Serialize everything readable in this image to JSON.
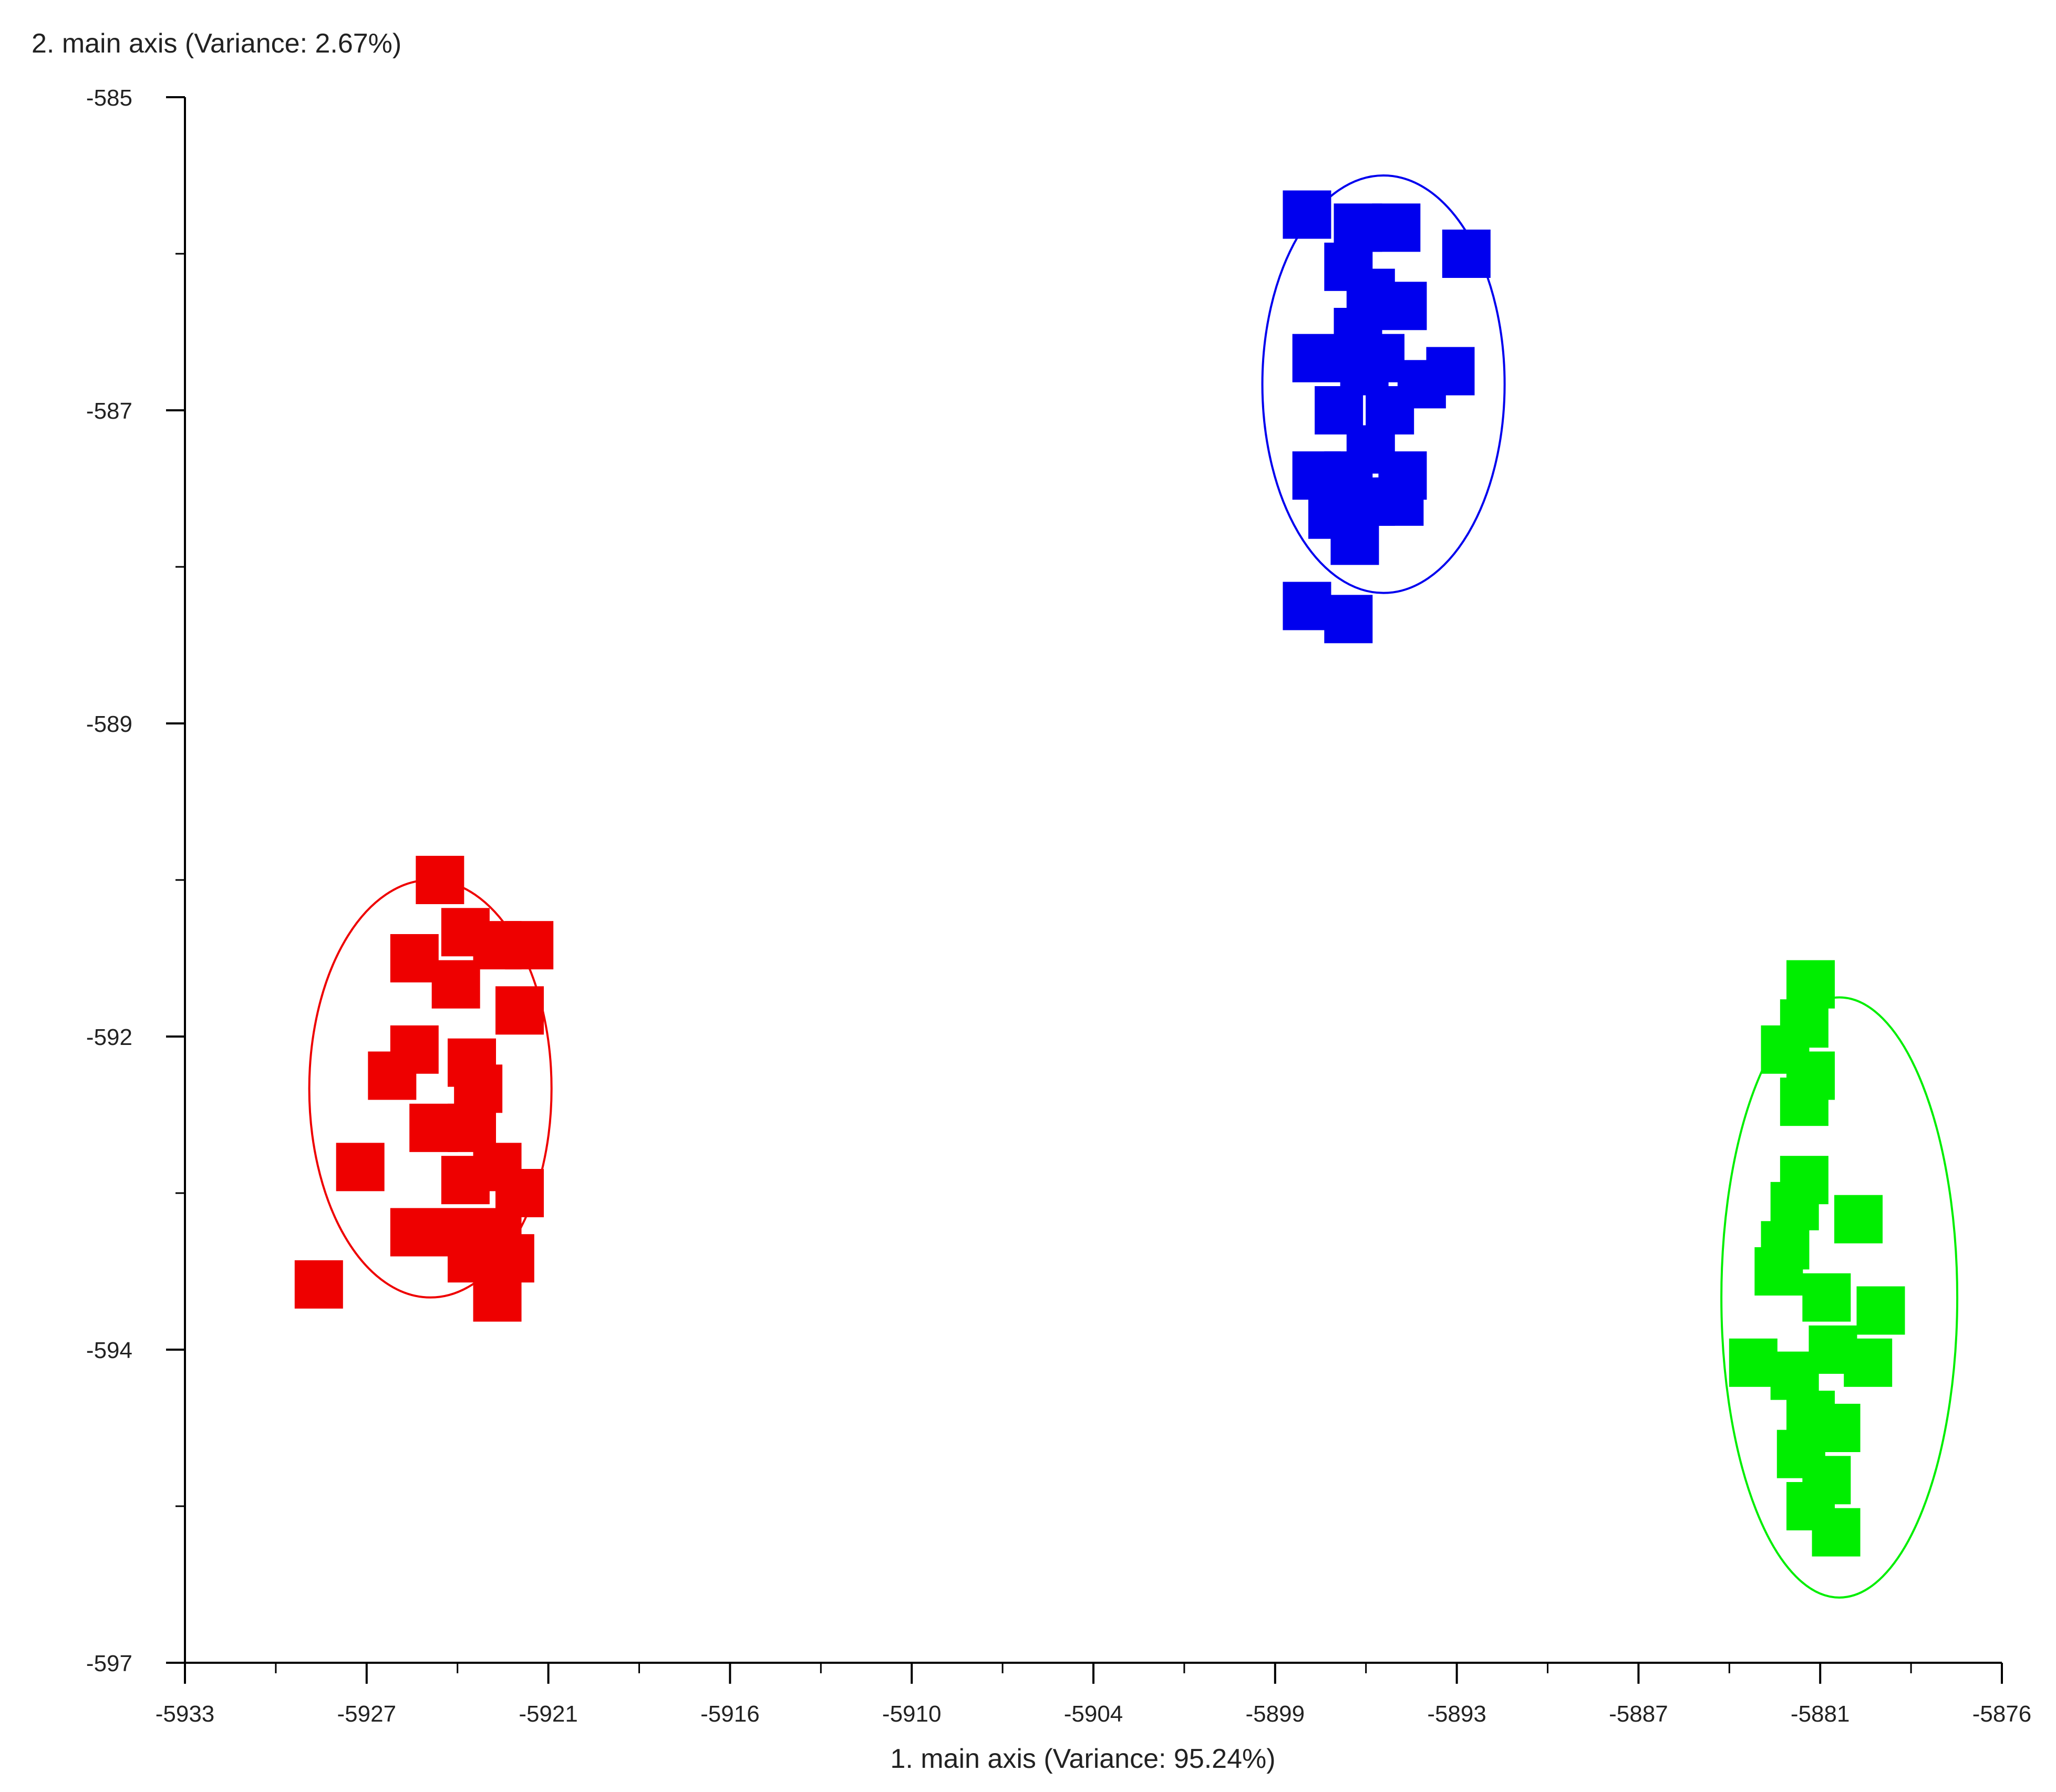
{
  "chart_data": {
    "type": "scatter",
    "title": "",
    "xlabel": "1. main axis (Variance: 95.24%)",
    "ylabel": "2. main axis (Variance: 2.67%)",
    "xlim": [
      -5933,
      -5876
    ],
    "ylim": [
      -597,
      -585
    ],
    "x_tick_values": [
      -5933,
      -5927,
      -5921,
      -5916,
      -5910,
      -5904,
      -5899,
      -5893,
      -5887,
      -5881,
      -5876
    ],
    "x_tick_labels": [
      "-5933",
      "-5927",
      "-5921",
      "-5916",
      "-5910",
      "-5904",
      "-5899",
      "-5893",
      "-5887",
      "-5881",
      "-5876"
    ],
    "y_tick_values": [
      -585,
      -587,
      -589,
      -592,
      -594,
      -597
    ],
    "y_tick_labels": [
      "-585",
      "-587",
      "-589",
      "-592",
      "-594",
      "-597"
    ],
    "grid": false,
    "marker": "square",
    "series": [
      {
        "color": "#0000ee",
        "points": [
          [
            -5897.8,
            -585.9
          ],
          [
            -5896.2,
            -586.0
          ],
          [
            -5895.0,
            -586.0
          ],
          [
            -5892.8,
            -586.2
          ],
          [
            -5896.5,
            -586.3
          ],
          [
            -5895.8,
            -586.5
          ],
          [
            -5894.8,
            -586.6
          ],
          [
            -5896.2,
            -586.8
          ],
          [
            -5895.5,
            -587.0
          ],
          [
            -5897.5,
            -587.0
          ],
          [
            -5896.0,
            -587.1
          ],
          [
            -5894.2,
            -587.2
          ],
          [
            -5893.3,
            -587.1
          ],
          [
            -5896.8,
            -587.4
          ],
          [
            -5895.2,
            -587.4
          ],
          [
            -5895.8,
            -587.7
          ],
          [
            -5897.5,
            -587.9
          ],
          [
            -5896.5,
            -587.9
          ],
          [
            -5894.8,
            -587.9
          ],
          [
            -5897.0,
            -588.2
          ],
          [
            -5895.8,
            -588.1
          ],
          [
            -5894.9,
            -588.1
          ],
          [
            -5896.3,
            -588.4
          ],
          [
            -5897.8,
            -588.9
          ],
          [
            -5896.5,
            -589.0
          ]
        ],
        "ellipse": {
          "cx": -5895.4,
          "cy": -587.2,
          "rx": 3.8,
          "ry": 1.6
        }
      },
      {
        "color": "#ee0000",
        "points": [
          [
            -5925.0,
            -591.0
          ],
          [
            -5924.2,
            -591.4
          ],
          [
            -5923.2,
            -591.5
          ],
          [
            -5922.2,
            -591.5
          ],
          [
            -5925.8,
            -591.6
          ],
          [
            -5924.5,
            -591.8
          ],
          [
            -5922.5,
            -592.0
          ],
          [
            -5925.8,
            -592.3
          ],
          [
            -5924.0,
            -592.4
          ],
          [
            -5926.5,
            -592.5
          ],
          [
            -5923.8,
            -592.6
          ],
          [
            -5925.2,
            -592.9
          ],
          [
            -5924.0,
            -592.9
          ],
          [
            -5923.2,
            -593.2
          ],
          [
            -5927.5,
            -593.2
          ],
          [
            -5924.2,
            -593.3
          ],
          [
            -5922.5,
            -593.4
          ],
          [
            -5925.8,
            -593.7
          ],
          [
            -5924.5,
            -593.7
          ],
          [
            -5923.2,
            -593.7
          ],
          [
            -5924.0,
            -593.9
          ],
          [
            -5922.8,
            -593.9
          ],
          [
            -5928.8,
            -594.1
          ],
          [
            -5923.2,
            -594.2
          ]
        ],
        "ellipse": {
          "cx": -5925.3,
          "cy": -592.6,
          "rx": 3.8,
          "ry": 1.6
        }
      },
      {
        "color": "#00ee00",
        "points": [
          [
            -5882.0,
            -591.8
          ],
          [
            -5882.2,
            -592.1
          ],
          [
            -5882.8,
            -592.3
          ],
          [
            -5882.0,
            -592.5
          ],
          [
            -5882.2,
            -592.7
          ],
          [
            -5882.2,
            -593.3
          ],
          [
            -5882.5,
            -593.5
          ],
          [
            -5880.5,
            -593.6
          ],
          [
            -5882.8,
            -593.8
          ],
          [
            -5883.0,
            -594.0
          ],
          [
            -5881.5,
            -594.2
          ],
          [
            -5879.8,
            -594.3
          ],
          [
            -5881.3,
            -594.6
          ],
          [
            -5883.8,
            -594.7
          ],
          [
            -5880.2,
            -594.7
          ],
          [
            -5882.5,
            -594.8
          ],
          [
            -5882.0,
            -595.1
          ],
          [
            -5881.2,
            -595.2
          ],
          [
            -5882.3,
            -595.4
          ],
          [
            -5881.5,
            -595.6
          ],
          [
            -5882.0,
            -595.8
          ],
          [
            -5881.2,
            -596.0
          ]
        ],
        "ellipse": {
          "cx": -5881.1,
          "cy": -594.2,
          "rx": 3.7,
          "ry": 2.3
        }
      }
    ]
  }
}
